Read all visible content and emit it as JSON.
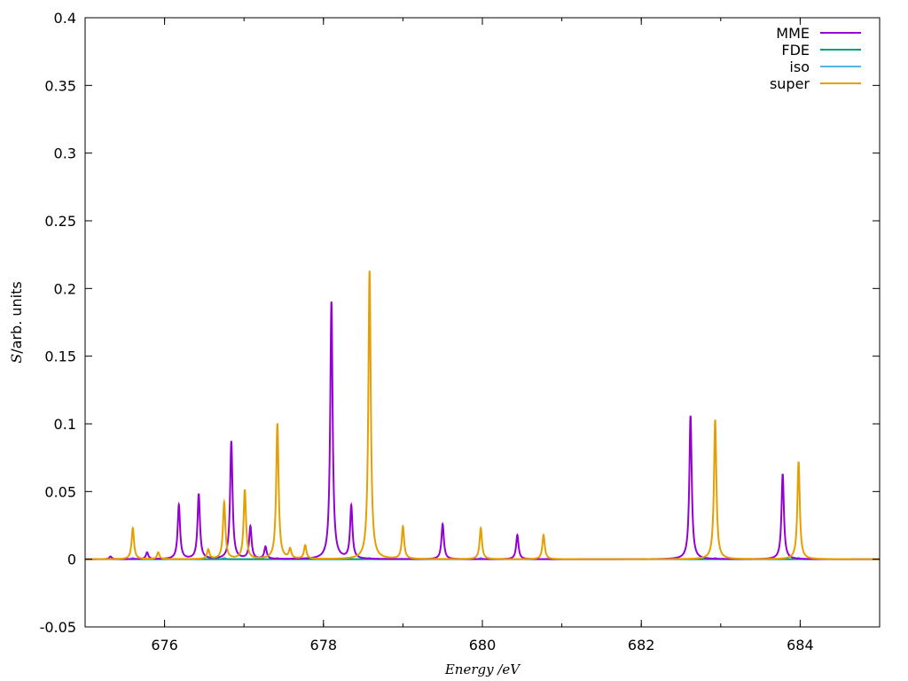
{
  "chart_data": {
    "type": "line",
    "xlabel": {
      "italic": "Energy",
      "plain": " /eV"
    },
    "ylabel": {
      "italic": "S",
      "plain": "/arb. units"
    },
    "xlim": [
      675,
      685
    ],
    "ylim": [
      -0.05,
      0.4
    ],
    "x_ticks": [
      "676",
      "678",
      "680",
      "682",
      "684"
    ],
    "y_ticks": [
      "-0.05",
      "0",
      "0.05",
      "0.1",
      "0.15",
      "0.2",
      "0.25",
      "0.3",
      "0.35",
      "0.4"
    ],
    "grid": false,
    "legend_position": "top-right",
    "lineshape": "lorentzian",
    "series": [
      {
        "name": "MME",
        "color": "#9400d3",
        "peaks": [
          {
            "x": 675.32,
            "height": 0.002
          },
          {
            "x": 675.78,
            "height": 0.005
          },
          {
            "x": 676.18,
            "height": 0.04
          },
          {
            "x": 676.43,
            "height": 0.048
          },
          {
            "x": 676.84,
            "height": 0.087
          },
          {
            "x": 677.08,
            "height": 0.024
          },
          {
            "x": 677.27,
            "height": 0.009
          },
          {
            "x": 678.1,
            "height": 0.19
          },
          {
            "x": 678.35,
            "height": 0.039
          },
          {
            "x": 679.5,
            "height": 0.026
          },
          {
            "x": 680.44,
            "height": 0.018
          },
          {
            "x": 682.62,
            "height": 0.106
          },
          {
            "x": 683.78,
            "height": 0.063
          }
        ]
      },
      {
        "name": "FDE",
        "color": "#009e73",
        "peaks": []
      },
      {
        "name": "iso",
        "color": "#56b4e9",
        "peaks": [
          {
            "x": 675.6,
            "height": 0.001
          },
          {
            "x": 676.75,
            "height": 0.001
          },
          {
            "x": 677.42,
            "height": 0.001
          },
          {
            "x": 678.58,
            "height": 0.001
          },
          {
            "x": 679.98,
            "height": 0.001
          },
          {
            "x": 682.93,
            "height": 0.001
          },
          {
            "x": 683.98,
            "height": 0.001
          }
        ]
      },
      {
        "name": "super",
        "color": "#e69f00",
        "peaks": [
          {
            "x": 675.6,
            "height": 0.023
          },
          {
            "x": 675.92,
            "height": 0.005
          },
          {
            "x": 676.55,
            "height": 0.007
          },
          {
            "x": 676.75,
            "height": 0.042
          },
          {
            "x": 677.01,
            "height": 0.051
          },
          {
            "x": 677.42,
            "height": 0.1
          },
          {
            "x": 677.58,
            "height": 0.007
          },
          {
            "x": 677.77,
            "height": 0.01
          },
          {
            "x": 678.58,
            "height": 0.213
          },
          {
            "x": 679.0,
            "height": 0.024
          },
          {
            "x": 679.98,
            "height": 0.023
          },
          {
            "x": 680.77,
            "height": 0.018
          },
          {
            "x": 682.93,
            "height": 0.103
          },
          {
            "x": 683.98,
            "height": 0.072
          }
        ]
      }
    ]
  }
}
